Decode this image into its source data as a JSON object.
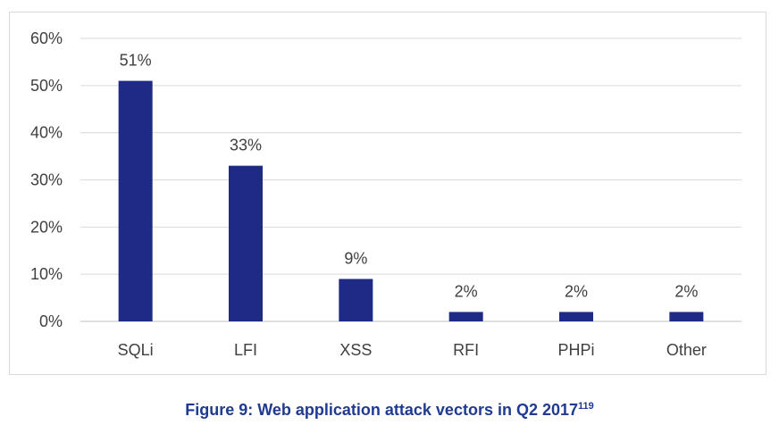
{
  "chart_data": {
    "type": "bar",
    "categories": [
      "SQLi",
      "LFI",
      "XSS",
      "RFI",
      "PHPi",
      "Other"
    ],
    "values": [
      51,
      33,
      9,
      2,
      2,
      2
    ],
    "data_labels": [
      "51%",
      "33%",
      "9%",
      "2%",
      "2%",
      "2%"
    ],
    "y_ticks": [
      "0%",
      "10%",
      "20%",
      "30%",
      "40%",
      "50%",
      "60%"
    ],
    "ylim": [
      0,
      60
    ],
    "grid": true,
    "bar_color": "#1f2a87",
    "title": "",
    "xlabel": "",
    "ylabel": ""
  },
  "caption": {
    "text": "Figure 9: Web application attack vectors in Q2 2017",
    "superscript": "119"
  }
}
